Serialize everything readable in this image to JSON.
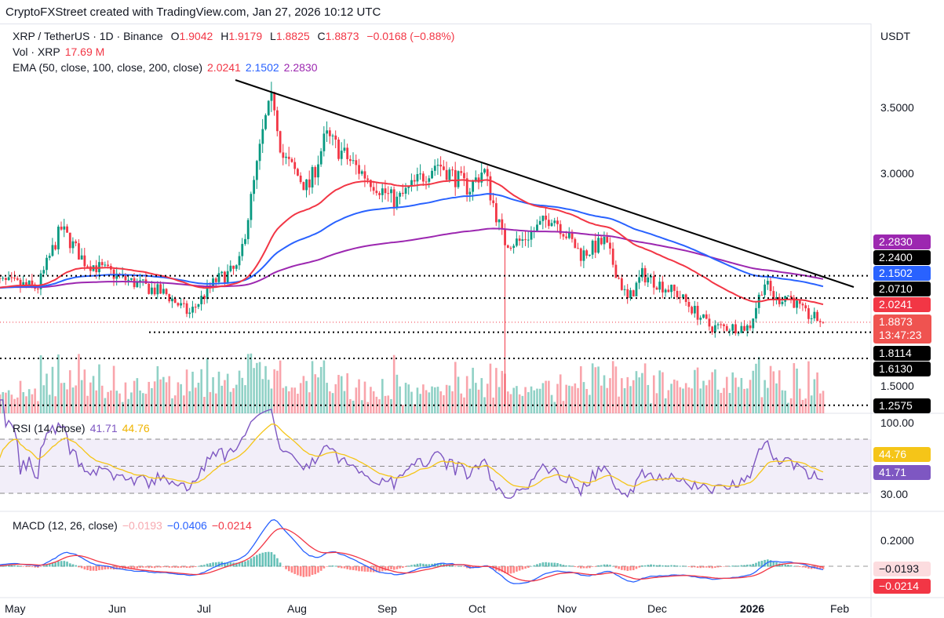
{
  "credit": "CryptoFXStreet created with TradingView.com, Jan 27, 2026 10:12 UTC",
  "symbol": {
    "name": "XRP / TetherUS · 1D · Binance",
    "o_label": "O",
    "o": "1.9042",
    "h_label": "H",
    "h": "1.9179",
    "l_label": "L",
    "l": "1.8825",
    "c_label": "C",
    "c": "1.8873",
    "change": "−0.0168 (−0.88%)"
  },
  "volume": {
    "label": "Vol · XRP",
    "value": "17.69 M"
  },
  "ema": {
    "label": "EMA (50, close, 100, close, 200, close)",
    "v50": "2.0241",
    "v100": "2.1502",
    "v200": "2.2830"
  },
  "rsi": {
    "label": "RSI (14, close)",
    "value": "41.71",
    "ma": "44.76"
  },
  "macd": {
    "label": "MACD (12, 26, close)",
    "hist": "−0.0193",
    "macd": "−0.0406",
    "signal": "−0.0214"
  },
  "currency": "USDT",
  "price_axis": [
    "3.5000",
    "3.0000",
    "1.5000"
  ],
  "rsi_axis": [
    "100.00",
    "30.00"
  ],
  "macd_axis": [
    "0.2000"
  ],
  "tags": {
    "ema200": "2.2830",
    "level1": "2.2400",
    "ema100": "2.1502",
    "level2": "2.0710",
    "ema50": "2.0241",
    "price": "1.8873",
    "countdown": "13:47:23",
    "level3": "1.8114",
    "level4": "1.6130",
    "level5": "1.2575",
    "rsi_ma": "44.76",
    "rsi": "41.71",
    "macd_hist": "−0.0193",
    "macd_signal": "−0.0214"
  },
  "time_axis": [
    "May",
    "Jun",
    "Jul",
    "Aug",
    "Sep",
    "Oct",
    "Nov",
    "Dec",
    "2026",
    "Feb"
  ],
  "colors": {
    "up": "#089981",
    "down": "#f23645",
    "ema50": "#f23645",
    "ema100": "#2962ff",
    "ema200": "#9c27b0",
    "rsi": "#7e57c2",
    "rsi_ma": "#f5c518"
  },
  "chart_data": {
    "type": "candlestick",
    "horizontal_levels": [
      2.24,
      2.071,
      1.8114,
      1.613,
      1.2575
    ],
    "trendline": [
      {
        "date": "Jul 18",
        "price": 3.65
      },
      {
        "date": "Jan 31",
        "price": 2.08
      }
    ],
    "price_path": [
      [
        "Apr 26",
        2.2
      ],
      [
        "May 8",
        2.15
      ],
      [
        "May 15",
        2.6
      ],
      [
        "May 22",
        2.35
      ],
      [
        "Jun 5",
        2.2
      ],
      [
        "Jun 18",
        2.1
      ],
      [
        "Jun 26",
        1.95
      ],
      [
        "Jul 4",
        2.2
      ],
      [
        "Jul 12",
        2.3
      ],
      [
        "Jul 17",
        2.9
      ],
      [
        "Jul 21",
        3.4
      ],
      [
        "Jul 24",
        3.6
      ],
      [
        "Jul 27",
        3.15
      ],
      [
        "Aug 5",
        2.9
      ],
      [
        "Aug 11",
        3.3
      ],
      [
        "Aug 22",
        3.05
      ],
      [
        "Sep 4",
        2.8
      ],
      [
        "Sep 18",
        3.1
      ],
      [
        "Sep 29",
        2.9
      ],
      [
        "Oct 3",
        3.05
      ],
      [
        "Oct 10",
        2.5
      ],
      [
        "Oct 16",
        2.5
      ],
      [
        "Oct 27",
        2.7
      ],
      [
        "Nov 6",
        2.4
      ],
      [
        "Nov 14",
        2.5
      ],
      [
        "Nov 22",
        2.05
      ],
      [
        "Nov 27",
        2.25
      ],
      [
        "Dec 8",
        2.1
      ],
      [
        "Dec 19",
        1.85
      ],
      [
        "Jan 1",
        1.85
      ],
      [
        "Jan 6",
        2.2
      ],
      [
        "Jan 10",
        2.05
      ],
      [
        "Jan 14",
        2.1
      ],
      [
        "Jan 20",
        1.95
      ],
      [
        "Jan 27",
        1.8873
      ]
    ]
  }
}
